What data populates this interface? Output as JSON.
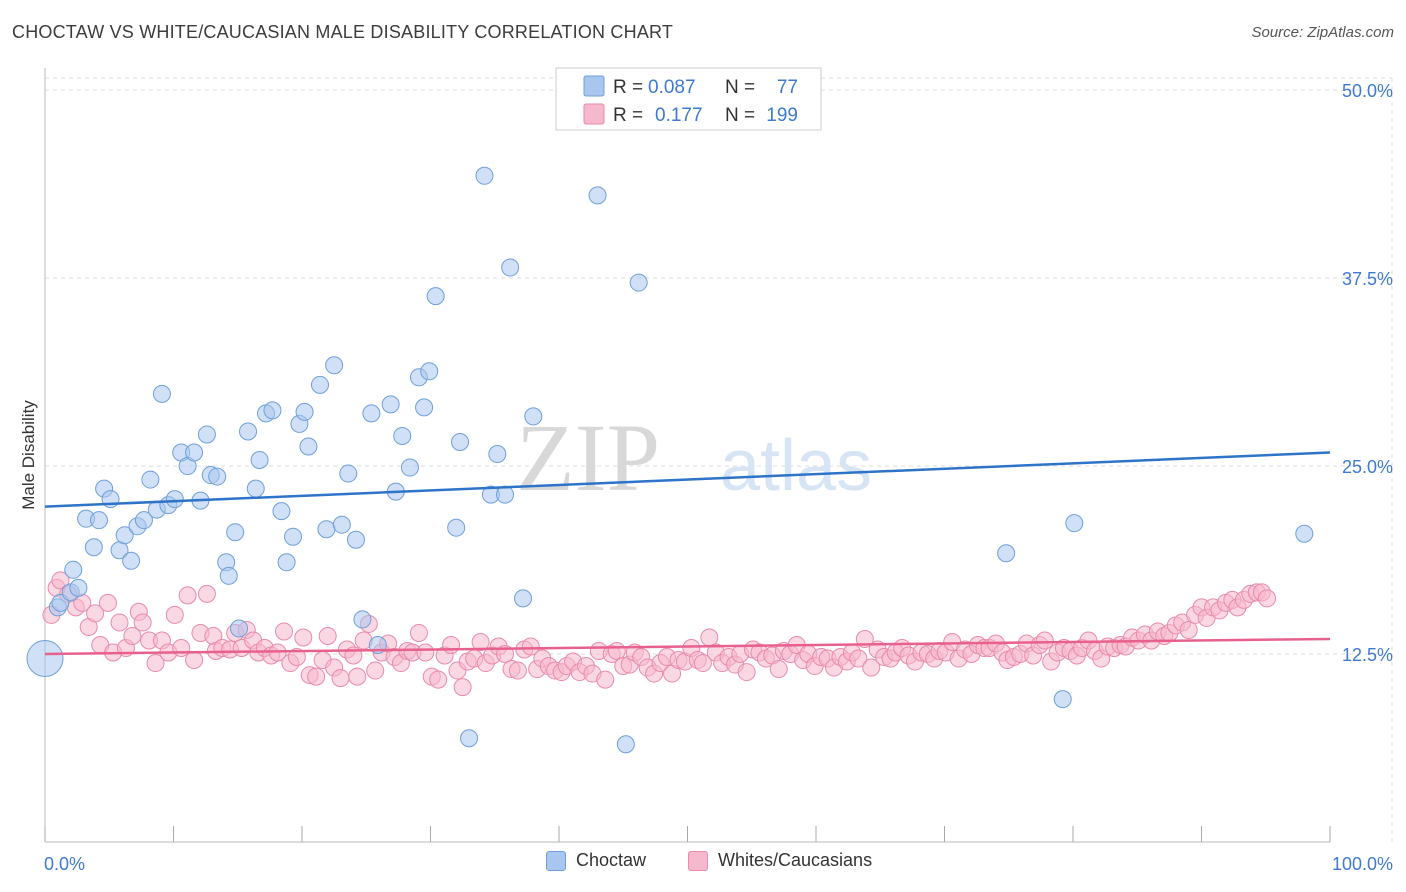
{
  "title": "CHOCTAW VS WHITE/CAUCASIAN MALE DISABILITY CORRELATION CHART",
  "source": "Source: ZipAtlas.com",
  "watermark": {
    "zip": "ZIP",
    "atlas": "atlas"
  },
  "colors": {
    "blue_fill": "#a9c7ee",
    "blue_stroke": "#6f9fd8",
    "blue_line": "#2e74c9",
    "pink_fill": "#f5b8cc",
    "pink_stroke": "#e98aaa",
    "pink_line": "#e8618c",
    "axis_label": "#3f7ad0",
    "grid": "#dddddd"
  },
  "legend_top": {
    "rows": [
      {
        "series": "Choctaw",
        "r_label": "R =",
        "r_value": "0.087",
        "n_label": "N =",
        "n_value": "77"
      },
      {
        "series": "Whites/Caucasians",
        "r_label": "R =",
        "r_value": "0.177",
        "n_label": "N =",
        "n_value": "199"
      }
    ]
  },
  "legend_bottom": [
    "Choctaw",
    "Whites/Caucasians"
  ],
  "chart_data": {
    "type": "scatter",
    "title": "CHOCTAW VS WHITE/CAUCASIAN MALE DISABILITY CORRELATION CHART",
    "xlabel": "",
    "ylabel": "Male Disability",
    "xlim": [
      0,
      100
    ],
    "ylim": [
      0,
      52
    ],
    "x_tick_labels": [
      "0.0%",
      "100.0%"
    ],
    "y_ticks": [
      12.5,
      25.0,
      37.5,
      50.0
    ],
    "y_tick_labels": [
      "12.5%",
      "25.0%",
      "37.5%",
      "50.0%"
    ],
    "grid": true,
    "series": [
      {
        "name": "Choctaw",
        "R": 0.087,
        "N": 77,
        "trend": {
          "x": [
            0,
            100
          ],
          "y": [
            22.3,
            25.9
          ]
        },
        "points": [
          [
            0.0,
            12.2
          ],
          [
            1.0,
            15.6
          ],
          [
            1.2,
            15.9
          ],
          [
            2.0,
            16.6
          ],
          [
            2.2,
            18.1
          ],
          [
            2.6,
            16.9
          ],
          [
            3.2,
            21.5
          ],
          [
            3.8,
            19.6
          ],
          [
            4.2,
            21.4
          ],
          [
            4.6,
            23.5
          ],
          [
            5.1,
            22.8
          ],
          [
            5.8,
            19.4
          ],
          [
            6.2,
            20.4
          ],
          [
            6.7,
            18.7
          ],
          [
            7.2,
            21.0
          ],
          [
            7.7,
            21.4
          ],
          [
            8.2,
            24.1
          ],
          [
            8.7,
            22.1
          ],
          [
            9.1,
            29.8
          ],
          [
            9.6,
            22.4
          ],
          [
            10.1,
            22.8
          ],
          [
            10.6,
            25.9
          ],
          [
            11.1,
            25.0
          ],
          [
            11.6,
            25.9
          ],
          [
            12.1,
            22.7
          ],
          [
            12.6,
            27.1
          ],
          [
            12.9,
            24.4
          ],
          [
            13.4,
            24.3
          ],
          [
            14.1,
            18.6
          ],
          [
            14.3,
            17.7
          ],
          [
            14.8,
            20.6
          ],
          [
            15.1,
            14.2
          ],
          [
            15.8,
            27.3
          ],
          [
            16.4,
            23.5
          ],
          [
            16.7,
            25.4
          ],
          [
            17.2,
            28.5
          ],
          [
            17.7,
            28.7
          ],
          [
            18.4,
            22.0
          ],
          [
            18.8,
            18.6
          ],
          [
            19.3,
            20.3
          ],
          [
            19.8,
            27.8
          ],
          [
            20.2,
            28.6
          ],
          [
            20.5,
            26.3
          ],
          [
            21.4,
            30.4
          ],
          [
            21.9,
            20.8
          ],
          [
            22.5,
            31.7
          ],
          [
            23.1,
            21.1
          ],
          [
            23.6,
            24.5
          ],
          [
            24.2,
            20.1
          ],
          [
            24.7,
            14.8
          ],
          [
            25.4,
            28.5
          ],
          [
            25.9,
            13.1
          ],
          [
            26.9,
            29.1
          ],
          [
            27.3,
            23.3
          ],
          [
            27.8,
            27.0
          ],
          [
            28.4,
            24.9
          ],
          [
            29.1,
            30.9
          ],
          [
            29.5,
            28.9
          ],
          [
            29.9,
            31.3
          ],
          [
            30.4,
            36.3
          ],
          [
            32.0,
            20.9
          ],
          [
            32.3,
            26.6
          ],
          [
            33.0,
            6.9
          ],
          [
            34.2,
            44.3
          ],
          [
            34.7,
            23.1
          ],
          [
            35.2,
            25.8
          ],
          [
            35.8,
            23.1
          ],
          [
            36.2,
            38.2
          ],
          [
            37.2,
            16.2
          ],
          [
            38.0,
            28.3
          ],
          [
            43.0,
            43.0
          ],
          [
            45.2,
            6.5
          ],
          [
            46.2,
            37.2
          ],
          [
            74.8,
            19.2
          ],
          [
            79.2,
            9.5
          ],
          [
            80.1,
            21.2
          ],
          [
            98.0,
            20.5
          ]
        ]
      },
      {
        "name": "Whites/Caucasians",
        "R": 0.177,
        "N": 199,
        "trend": {
          "x": [
            0,
            100
          ],
          "y": [
            12.5,
            13.5
          ]
        },
        "points": [
          [
            0.5,
            15.1
          ],
          [
            0.9,
            16.9
          ],
          [
            1.2,
            17.4
          ],
          [
            1.8,
            16.5
          ],
          [
            2.4,
            15.6
          ],
          [
            2.9,
            15.9
          ],
          [
            3.4,
            14.3
          ],
          [
            3.9,
            15.2
          ],
          [
            4.3,
            13.1
          ],
          [
            4.9,
            15.9
          ],
          [
            5.3,
            12.6
          ],
          [
            5.8,
            14.6
          ],
          [
            6.3,
            12.9
          ],
          [
            6.8,
            13.7
          ],
          [
            7.3,
            15.3
          ],
          [
            7.6,
            14.6
          ],
          [
            8.1,
            13.4
          ],
          [
            8.6,
            11.9
          ],
          [
            9.1,
            13.4
          ],
          [
            9.6,
            12.6
          ],
          [
            10.1,
            15.1
          ],
          [
            10.6,
            12.9
          ],
          [
            11.1,
            16.4
          ],
          [
            11.6,
            12.1
          ],
          [
            12.1,
            13.9
          ],
          [
            12.6,
            16.5
          ],
          [
            13.1,
            13.7
          ],
          [
            13.3,
            12.7
          ],
          [
            13.8,
            12.9
          ],
          [
            14.4,
            12.8
          ],
          [
            14.8,
            13.9
          ],
          [
            15.3,
            12.9
          ],
          [
            15.7,
            14.1
          ],
          [
            16.2,
            13.4
          ],
          [
            16.6,
            12.6
          ],
          [
            17.1,
            12.9
          ],
          [
            17.6,
            12.4
          ],
          [
            18.1,
            12.6
          ],
          [
            18.6,
            14.0
          ],
          [
            19.1,
            11.9
          ],
          [
            19.6,
            12.3
          ],
          [
            20.1,
            13.6
          ],
          [
            20.6,
            11.1
          ],
          [
            21.1,
            11.0
          ],
          [
            21.6,
            12.1
          ],
          [
            22.0,
            13.7
          ],
          [
            22.5,
            11.6
          ],
          [
            23.0,
            10.9
          ],
          [
            23.5,
            12.8
          ],
          [
            24.0,
            12.4
          ],
          [
            24.3,
            11.0
          ],
          [
            24.8,
            13.4
          ],
          [
            25.2,
            14.5
          ],
          [
            25.7,
            11.4
          ],
          [
            26.2,
            12.6
          ],
          [
            26.7,
            13.2
          ],
          [
            27.2,
            12.3
          ],
          [
            27.7,
            11.9
          ],
          [
            28.2,
            12.7
          ],
          [
            28.6,
            12.6
          ],
          [
            29.1,
            13.9
          ],
          [
            29.6,
            12.6
          ],
          [
            30.1,
            11.0
          ],
          [
            30.6,
            10.8
          ],
          [
            31.1,
            12.4
          ],
          [
            31.6,
            13.1
          ],
          [
            32.1,
            11.4
          ],
          [
            32.5,
            10.3
          ],
          [
            32.9,
            12.0
          ],
          [
            33.4,
            12.2
          ],
          [
            33.9,
            13.3
          ],
          [
            34.3,
            11.9
          ],
          [
            34.8,
            12.4
          ],
          [
            35.3,
            13.0
          ],
          [
            35.8,
            12.5
          ],
          [
            36.3,
            11.5
          ],
          [
            36.8,
            11.4
          ],
          [
            37.3,
            12.8
          ],
          [
            37.8,
            13.0
          ],
          [
            38.3,
            11.5
          ],
          [
            38.7,
            12.2
          ],
          [
            39.2,
            11.7
          ],
          [
            39.7,
            11.4
          ],
          [
            40.2,
            11.3
          ],
          [
            40.6,
            11.7
          ],
          [
            41.1,
            12.0
          ],
          [
            41.6,
            11.3
          ],
          [
            42.1,
            11.7
          ],
          [
            42.6,
            11.2
          ],
          [
            43.1,
            12.7
          ],
          [
            43.6,
            10.8
          ],
          [
            44.1,
            12.5
          ],
          [
            44.5,
            12.7
          ],
          [
            45.0,
            11.7
          ],
          [
            45.5,
            11.8
          ],
          [
            45.9,
            12.6
          ],
          [
            46.4,
            12.3
          ],
          [
            46.9,
            11.6
          ],
          [
            47.4,
            11.2
          ],
          [
            47.9,
            11.9
          ],
          [
            48.4,
            12.3
          ],
          [
            48.8,
            11.2
          ],
          [
            49.3,
            12.1
          ],
          [
            49.8,
            12.0
          ],
          [
            50.3,
            12.9
          ],
          [
            50.8,
            12.1
          ],
          [
            51.2,
            11.9
          ],
          [
            51.7,
            13.6
          ],
          [
            52.2,
            12.6
          ],
          [
            52.7,
            11.9
          ],
          [
            53.2,
            12.3
          ],
          [
            53.7,
            11.8
          ],
          [
            54.1,
            12.5
          ],
          [
            54.6,
            11.3
          ],
          [
            55.1,
            12.8
          ],
          [
            55.6,
            12.6
          ],
          [
            56.1,
            12.2
          ],
          [
            56.6,
            12.4
          ],
          [
            57.1,
            11.5
          ],
          [
            57.5,
            12.7
          ],
          [
            58.0,
            12.5
          ],
          [
            58.5,
            13.1
          ],
          [
            59.0,
            12.1
          ],
          [
            59.4,
            12.5
          ],
          [
            59.9,
            11.7
          ],
          [
            60.4,
            12.3
          ],
          [
            60.9,
            12.2
          ],
          [
            61.4,
            11.6
          ],
          [
            61.9,
            12.3
          ],
          [
            62.4,
            12.0
          ],
          [
            62.8,
            12.6
          ],
          [
            63.3,
            12.2
          ],
          [
            63.8,
            13.5
          ],
          [
            64.3,
            11.6
          ],
          [
            64.8,
            12.8
          ],
          [
            65.3,
            12.3
          ],
          [
            65.8,
            12.2
          ],
          [
            66.2,
            12.6
          ],
          [
            66.7,
            12.9
          ],
          [
            67.2,
            12.4
          ],
          [
            67.7,
            12.0
          ],
          [
            68.2,
            12.6
          ],
          [
            68.7,
            12.5
          ],
          [
            69.2,
            12.2
          ],
          [
            69.6,
            12.7
          ],
          [
            70.1,
            12.6
          ],
          [
            70.6,
            13.3
          ],
          [
            71.1,
            12.2
          ],
          [
            71.6,
            12.8
          ],
          [
            72.1,
            12.5
          ],
          [
            72.6,
            13.1
          ],
          [
            73.1,
            12.9
          ],
          [
            73.5,
            12.9
          ],
          [
            74.0,
            13.2
          ],
          [
            74.5,
            12.6
          ],
          [
            74.9,
            12.1
          ],
          [
            75.4,
            12.3
          ],
          [
            75.9,
            12.5
          ],
          [
            76.4,
            13.2
          ],
          [
            76.9,
            12.4
          ],
          [
            77.4,
            13.1
          ],
          [
            77.8,
            13.4
          ],
          [
            78.3,
            12.0
          ],
          [
            78.8,
            12.6
          ],
          [
            79.3,
            12.9
          ],
          [
            79.8,
            12.7
          ],
          [
            80.3,
            12.4
          ],
          [
            80.7,
            12.9
          ],
          [
            81.2,
            13.4
          ],
          [
            81.7,
            12.7
          ],
          [
            82.2,
            12.2
          ],
          [
            82.7,
            13.0
          ],
          [
            83.2,
            12.9
          ],
          [
            83.7,
            13.1
          ],
          [
            84.1,
            13.0
          ],
          [
            84.6,
            13.6
          ],
          [
            85.1,
            13.4
          ],
          [
            85.6,
            13.8
          ],
          [
            86.1,
            13.4
          ],
          [
            86.6,
            14.0
          ],
          [
            87.1,
            13.7
          ],
          [
            87.5,
            13.9
          ],
          [
            88.0,
            14.4
          ],
          [
            88.5,
            14.6
          ],
          [
            89.0,
            14.1
          ],
          [
            89.5,
            15.1
          ],
          [
            90.0,
            15.6
          ],
          [
            90.4,
            14.9
          ],
          [
            90.9,
            15.6
          ],
          [
            91.4,
            15.4
          ],
          [
            91.9,
            15.9
          ],
          [
            92.4,
            16.1
          ],
          [
            92.8,
            15.6
          ],
          [
            93.3,
            16.1
          ],
          [
            93.8,
            16.5
          ],
          [
            94.3,
            16.6
          ],
          [
            94.7,
            16.6
          ],
          [
            95.1,
            16.2
          ]
        ]
      }
    ]
  }
}
